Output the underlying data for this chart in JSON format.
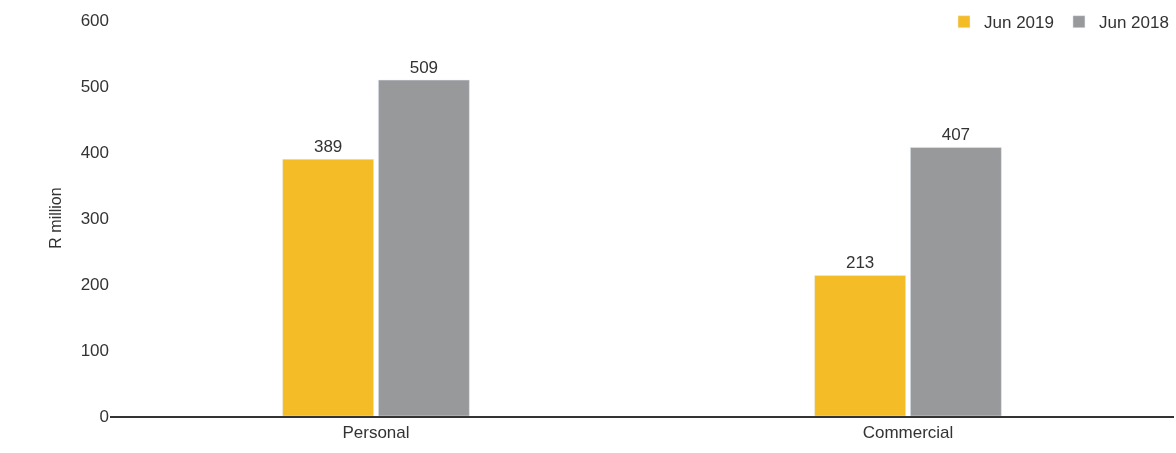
{
  "chart_data": {
    "type": "bar",
    "ylabel": "R million",
    "categories": [
      "Personal",
      "Commercial"
    ],
    "series": [
      {
        "name": "Jun 2019",
        "color": "#f4bc26",
        "values": [
          389,
          213
        ]
      },
      {
        "name": "Jun 2018",
        "color": "#97999b",
        "values": [
          509,
          407
        ]
      }
    ],
    "ylim": [
      0,
      600
    ],
    "yticks": [
      0,
      100,
      200,
      300,
      400,
      500,
      600
    ],
    "data_labels": true,
    "legend": "top right"
  }
}
